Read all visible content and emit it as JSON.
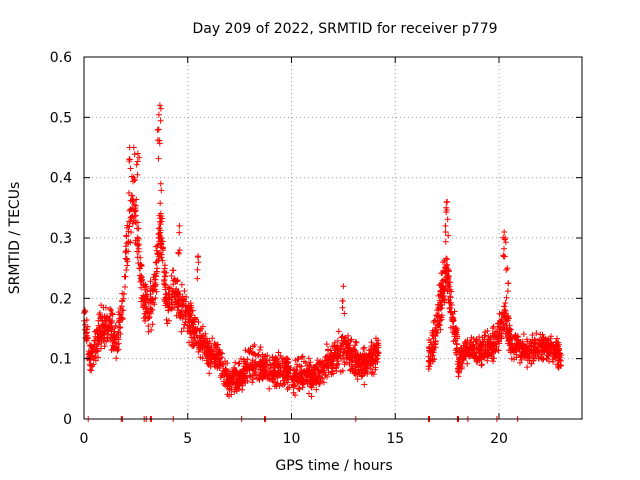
{
  "chart_data": {
    "type": "scatter",
    "title": "Day 209 of 2022, SRMTID for receiver p779",
    "xlabel": "GPS time / hours",
    "ylabel": "SRMTID / TECUs",
    "xlim": [
      0,
      24
    ],
    "ylim": [
      0,
      0.6
    ],
    "x_ticks": [
      "0",
      "5",
      "10",
      "15",
      "20"
    ],
    "y_ticks": [
      "0",
      "0.1",
      "0.2",
      "0.3",
      "0.4",
      "0.5",
      "0.6"
    ],
    "grid": true,
    "marker": "+",
    "color": "#ff0000",
    "series": [
      {
        "name": "SRMTID",
        "segments": [
          {
            "x_start": 0.0,
            "x_end": 14.2,
            "count": 1700,
            "trend_x": [
              0.0,
              0.3,
              0.6,
              1.0,
              1.3,
              1.6,
              1.9,
              2.1,
              2.3,
              2.5,
              2.8,
              3.1,
              3.4,
              3.7,
              4.0,
              4.3,
              4.6,
              5.0,
              5.5,
              6.0,
              6.5,
              7.0,
              7.5,
              8.0,
              8.5,
              9.0,
              9.5,
              10.0,
              10.5,
              11.0,
              11.5,
              12.0,
              12.5,
              13.0,
              13.5,
              14.2
            ],
            "trend_y": [
              0.17,
              0.1,
              0.13,
              0.16,
              0.15,
              0.13,
              0.2,
              0.3,
              0.36,
              0.33,
              0.22,
              0.17,
              0.22,
              0.32,
              0.18,
              0.22,
              0.19,
              0.17,
              0.14,
              0.11,
              0.1,
              0.06,
              0.07,
              0.09,
              0.09,
              0.08,
              0.08,
              0.07,
              0.07,
              0.07,
              0.08,
              0.1,
              0.12,
              0.1,
              0.09,
              0.11
            ],
            "spread": 0.05
          },
          {
            "x_start": 16.6,
            "x_end": 18.0,
            "count": 220,
            "trend_x": [
              16.6,
              16.9,
              17.2,
              17.5,
              17.8,
              18.0
            ],
            "trend_y": [
              0.1,
              0.13,
              0.2,
              0.24,
              0.16,
              0.12
            ],
            "spread": 0.05
          },
          {
            "x_start": 18.0,
            "x_end": 23.0,
            "count": 620,
            "trend_x": [
              18.0,
              18.5,
              19.0,
              19.5,
              20.0,
              20.3,
              20.6,
              21.0,
              21.5,
              22.0,
              22.5,
              23.0
            ],
            "trend_y": [
              0.09,
              0.12,
              0.11,
              0.12,
              0.14,
              0.17,
              0.12,
              0.12,
              0.11,
              0.12,
              0.12,
              0.1
            ],
            "spread": 0.04
          }
        ],
        "peaks": [
          {
            "x": 2.4,
            "y": 0.45
          },
          {
            "x": 2.6,
            "y": 0.44
          },
          {
            "x": 2.2,
            "y": 0.45
          },
          {
            "x": 3.66,
            "y": 0.52
          },
          {
            "x": 3.6,
            "y": 0.48
          },
          {
            "x": 3.7,
            "y": 0.39
          },
          {
            "x": 4.6,
            "y": 0.32
          },
          {
            "x": 5.5,
            "y": 0.27
          },
          {
            "x": 12.5,
            "y": 0.22
          },
          {
            "x": 17.5,
            "y": 0.36
          },
          {
            "x": 17.45,
            "y": 0.35
          },
          {
            "x": 17.3,
            "y": 0.26
          },
          {
            "x": 20.3,
            "y": 0.3
          },
          {
            "x": 20.25,
            "y": 0.31
          },
          {
            "x": 20.4,
            "y": 0.25
          }
        ],
        "zero_values_x": [
          0.2,
          1.8,
          1.85,
          2.9,
          3.0,
          3.2,
          3.25,
          4.3,
          7.6,
          8.7,
          8.75,
          13.1,
          16.6,
          16.65,
          18.0,
          18.05,
          18.5,
          19.9,
          20.9
        ]
      }
    ]
  }
}
